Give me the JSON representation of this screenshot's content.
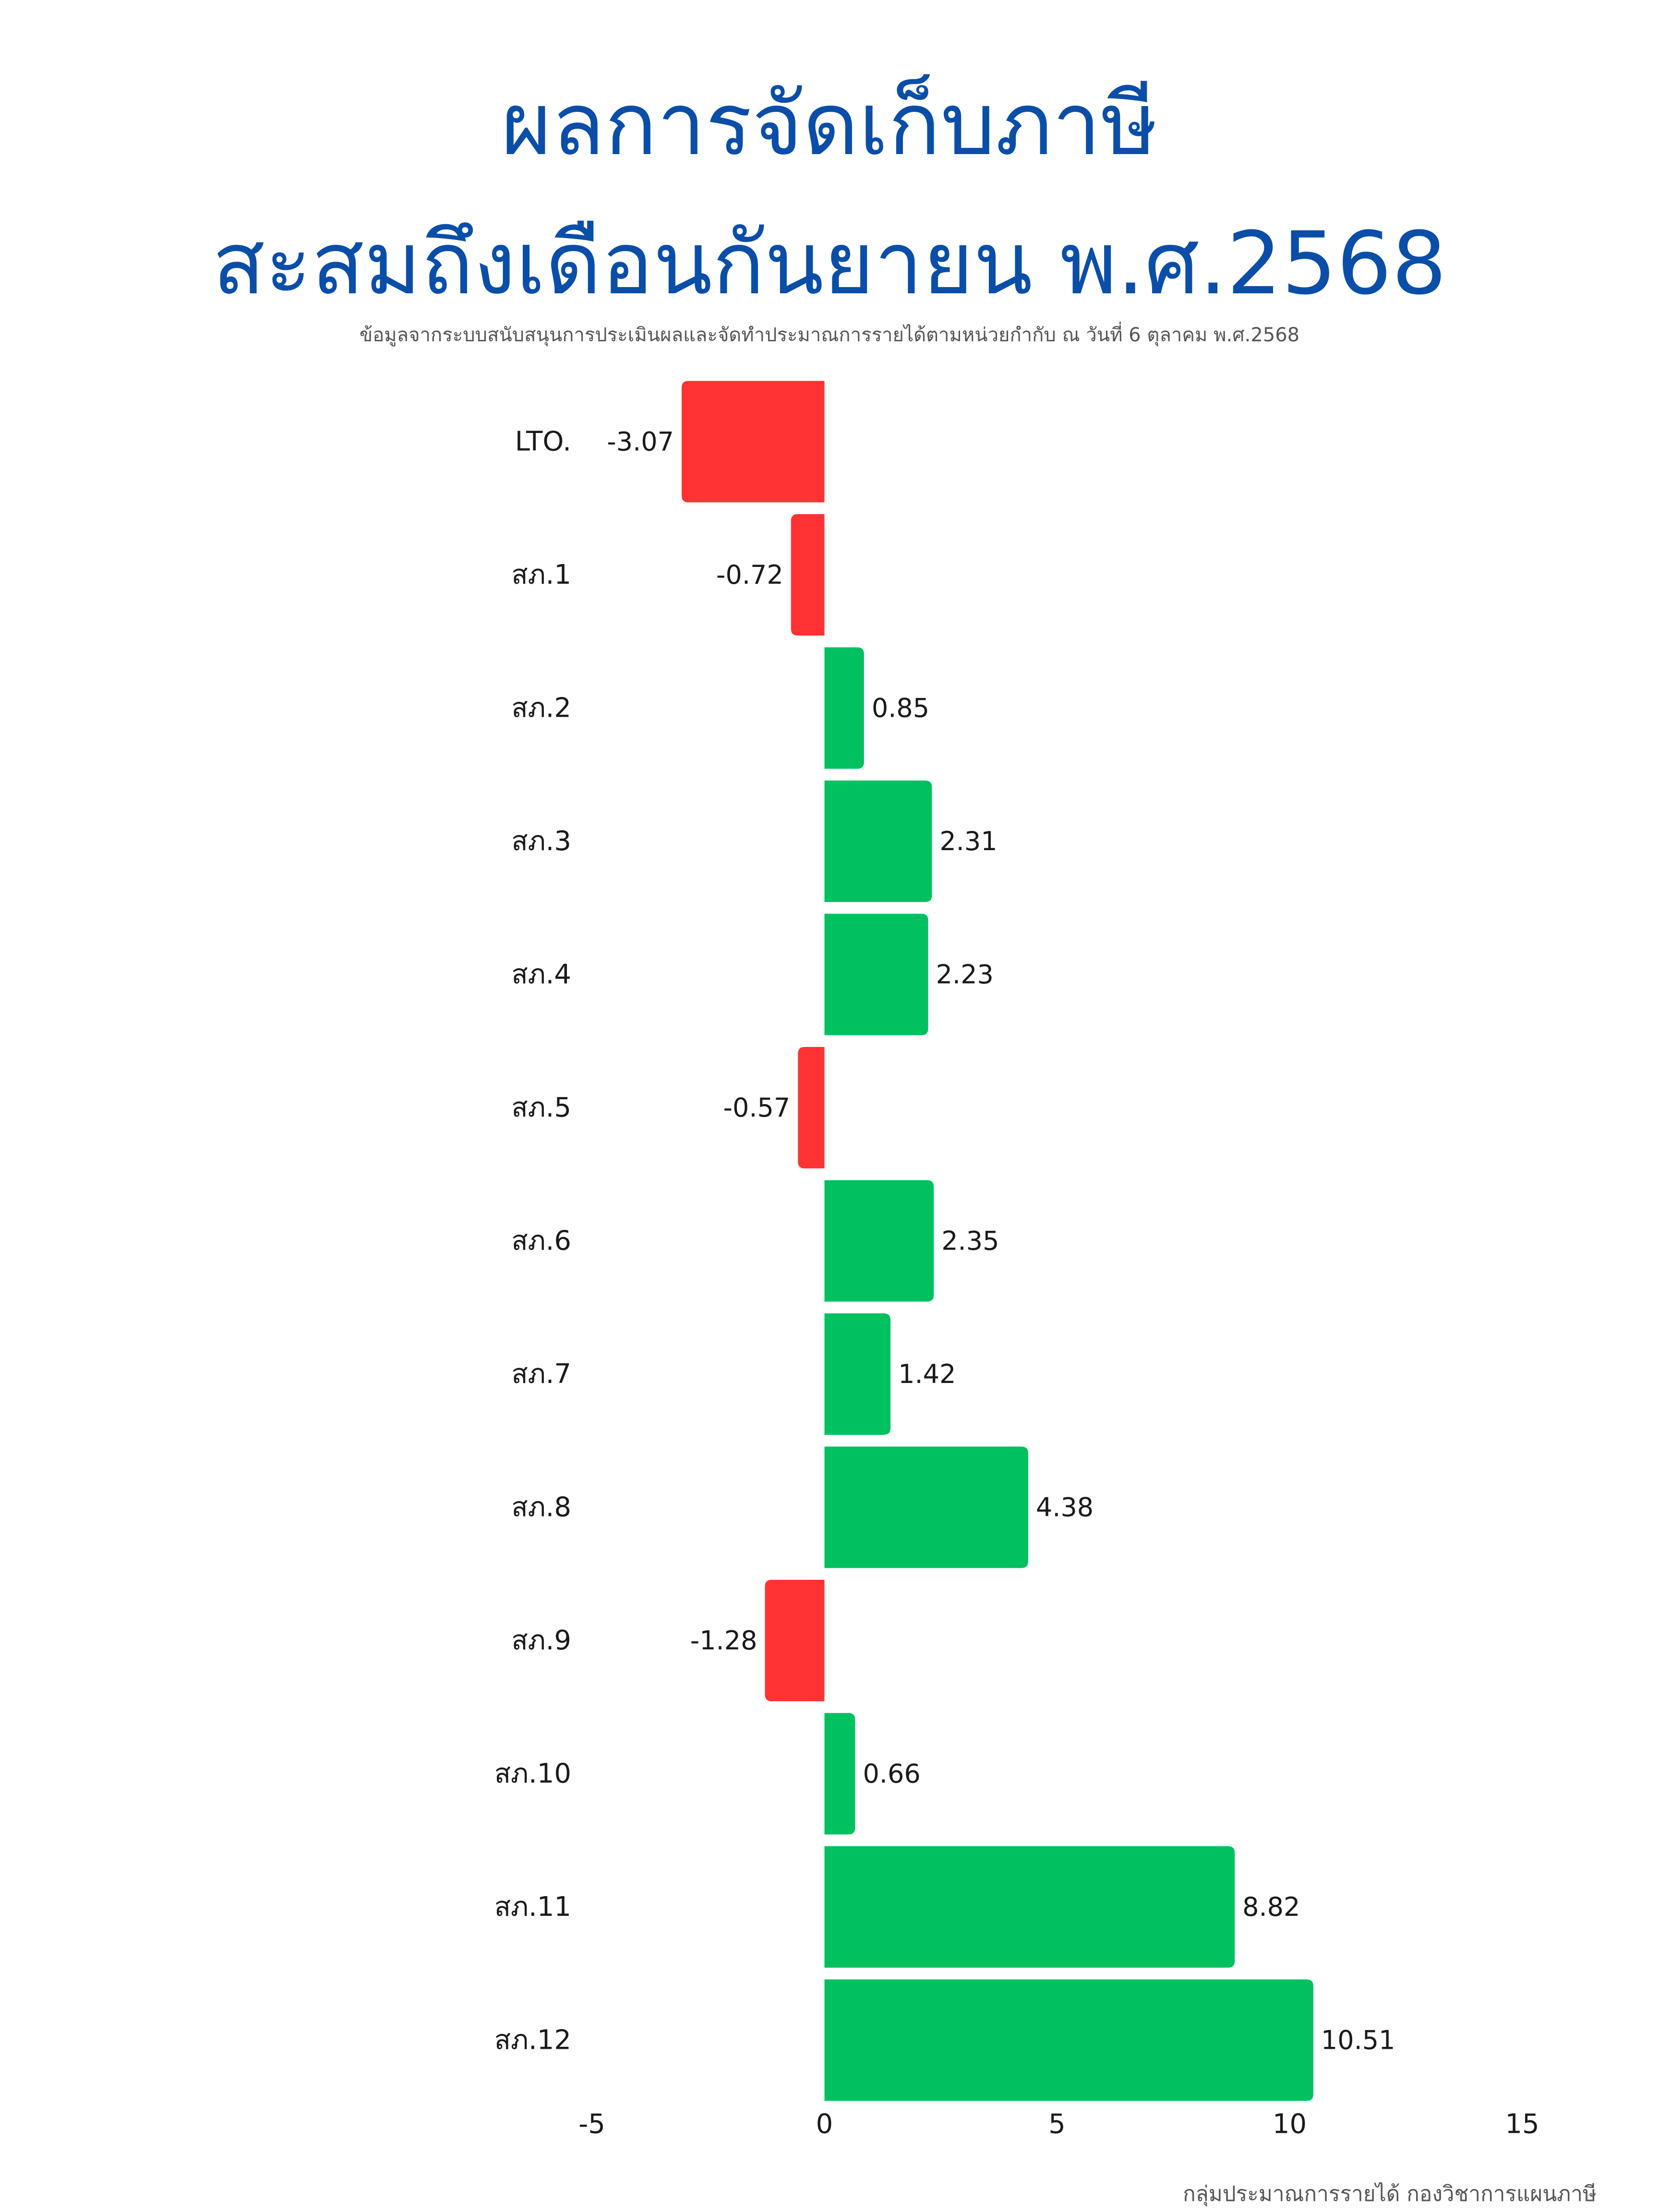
{
  "title_line1": "ผลการจัดเก็บภาษี",
  "title_line2": "สะสมถึงเดือนกันยายน พ.ศ.2568",
  "subtitle": "ข้อมูลจากระบบสนับสนุนการประเมินผลและจัดทำประมาณการรายได้ตามหน่วยกำกับ ณ วันที่ 6 ตุลาคม พ.ศ.2568",
  "footer": "กลุ่มประมาณการรายได้ กองวิชาการแผนภาษี",
  "colors": {
    "title": "#0a4ea8",
    "positive": "#00c060",
    "negative": "#ff3333"
  },
  "chart_data": {
    "type": "bar",
    "orientation": "horizontal",
    "categories": [
      "LTO.",
      "สภ.1",
      "สภ.2",
      "สภ.3",
      "สภ.4",
      "สภ.5",
      "สภ.6",
      "สภ.7",
      "สภ.8",
      "สภ.9",
      "สภ.10",
      "สภ.11",
      "สภ.12"
    ],
    "values": [
      -3.07,
      -0.72,
      0.85,
      2.31,
      2.23,
      -0.57,
      2.35,
      1.42,
      4.38,
      -1.28,
      0.66,
      8.82,
      10.51
    ],
    "value_labels": [
      "-3.07",
      "-0.72",
      "0.85",
      "2.31",
      "2.23",
      "-0.57",
      "2.35",
      "1.42",
      "4.38",
      "-1.28",
      "0.66",
      "8.82",
      "10.51"
    ],
    "xlim": [
      -5,
      15
    ],
    "xticks": [
      "-5",
      "0",
      "5",
      "10",
      "15"
    ],
    "grid": false,
    "legend": false
  }
}
